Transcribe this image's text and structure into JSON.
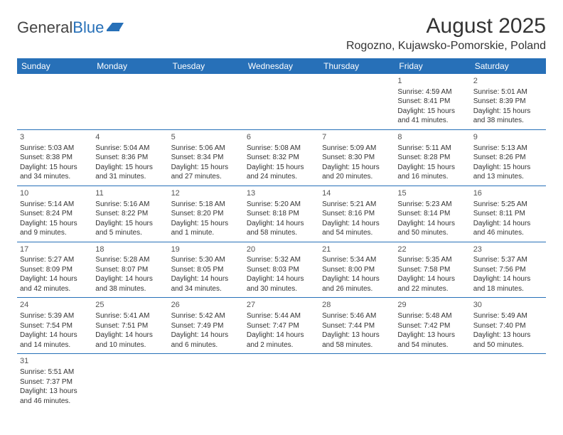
{
  "logo": {
    "text1": "General",
    "text2": "Blue"
  },
  "header": {
    "title": "August 2025",
    "location": "Rogozno, Kujawsko-Pomorskie, Poland"
  },
  "colors": {
    "accent": "#2770b8"
  },
  "dow": [
    "Sunday",
    "Monday",
    "Tuesday",
    "Wednesday",
    "Thursday",
    "Friday",
    "Saturday"
  ],
  "weeks": [
    [
      null,
      null,
      null,
      null,
      null,
      {
        "d": "1",
        "sr": "4:59 AM",
        "ss": "8:41 PM",
        "dl": "15 hours and 41 minutes."
      },
      {
        "d": "2",
        "sr": "5:01 AM",
        "ss": "8:39 PM",
        "dl": "15 hours and 38 minutes."
      }
    ],
    [
      {
        "d": "3",
        "sr": "5:03 AM",
        "ss": "8:38 PM",
        "dl": "15 hours and 34 minutes."
      },
      {
        "d": "4",
        "sr": "5:04 AM",
        "ss": "8:36 PM",
        "dl": "15 hours and 31 minutes."
      },
      {
        "d": "5",
        "sr": "5:06 AM",
        "ss": "8:34 PM",
        "dl": "15 hours and 27 minutes."
      },
      {
        "d": "6",
        "sr": "5:08 AM",
        "ss": "8:32 PM",
        "dl": "15 hours and 24 minutes."
      },
      {
        "d": "7",
        "sr": "5:09 AM",
        "ss": "8:30 PM",
        "dl": "15 hours and 20 minutes."
      },
      {
        "d": "8",
        "sr": "5:11 AM",
        "ss": "8:28 PM",
        "dl": "15 hours and 16 minutes."
      },
      {
        "d": "9",
        "sr": "5:13 AM",
        "ss": "8:26 PM",
        "dl": "15 hours and 13 minutes."
      }
    ],
    [
      {
        "d": "10",
        "sr": "5:14 AM",
        "ss": "8:24 PM",
        "dl": "15 hours and 9 minutes."
      },
      {
        "d": "11",
        "sr": "5:16 AM",
        "ss": "8:22 PM",
        "dl": "15 hours and 5 minutes."
      },
      {
        "d": "12",
        "sr": "5:18 AM",
        "ss": "8:20 PM",
        "dl": "15 hours and 1 minute."
      },
      {
        "d": "13",
        "sr": "5:20 AM",
        "ss": "8:18 PM",
        "dl": "14 hours and 58 minutes."
      },
      {
        "d": "14",
        "sr": "5:21 AM",
        "ss": "8:16 PM",
        "dl": "14 hours and 54 minutes."
      },
      {
        "d": "15",
        "sr": "5:23 AM",
        "ss": "8:14 PM",
        "dl": "14 hours and 50 minutes."
      },
      {
        "d": "16",
        "sr": "5:25 AM",
        "ss": "8:11 PM",
        "dl": "14 hours and 46 minutes."
      }
    ],
    [
      {
        "d": "17",
        "sr": "5:27 AM",
        "ss": "8:09 PM",
        "dl": "14 hours and 42 minutes."
      },
      {
        "d": "18",
        "sr": "5:28 AM",
        "ss": "8:07 PM",
        "dl": "14 hours and 38 minutes."
      },
      {
        "d": "19",
        "sr": "5:30 AM",
        "ss": "8:05 PM",
        "dl": "14 hours and 34 minutes."
      },
      {
        "d": "20",
        "sr": "5:32 AM",
        "ss": "8:03 PM",
        "dl": "14 hours and 30 minutes."
      },
      {
        "d": "21",
        "sr": "5:34 AM",
        "ss": "8:00 PM",
        "dl": "14 hours and 26 minutes."
      },
      {
        "d": "22",
        "sr": "5:35 AM",
        "ss": "7:58 PM",
        "dl": "14 hours and 22 minutes."
      },
      {
        "d": "23",
        "sr": "5:37 AM",
        "ss": "7:56 PM",
        "dl": "14 hours and 18 minutes."
      }
    ],
    [
      {
        "d": "24",
        "sr": "5:39 AM",
        "ss": "7:54 PM",
        "dl": "14 hours and 14 minutes."
      },
      {
        "d": "25",
        "sr": "5:41 AM",
        "ss": "7:51 PM",
        "dl": "14 hours and 10 minutes."
      },
      {
        "d": "26",
        "sr": "5:42 AM",
        "ss": "7:49 PM",
        "dl": "14 hours and 6 minutes."
      },
      {
        "d": "27",
        "sr": "5:44 AM",
        "ss": "7:47 PM",
        "dl": "14 hours and 2 minutes."
      },
      {
        "d": "28",
        "sr": "5:46 AM",
        "ss": "7:44 PM",
        "dl": "13 hours and 58 minutes."
      },
      {
        "d": "29",
        "sr": "5:48 AM",
        "ss": "7:42 PM",
        "dl": "13 hours and 54 minutes."
      },
      {
        "d": "30",
        "sr": "5:49 AM",
        "ss": "7:40 PM",
        "dl": "13 hours and 50 minutes."
      }
    ],
    [
      {
        "d": "31",
        "sr": "5:51 AM",
        "ss": "7:37 PM",
        "dl": "13 hours and 46 minutes."
      },
      null,
      null,
      null,
      null,
      null,
      null
    ]
  ],
  "labels": {
    "sunrise": "Sunrise:",
    "sunset": "Sunset:",
    "daylight": "Daylight:"
  }
}
